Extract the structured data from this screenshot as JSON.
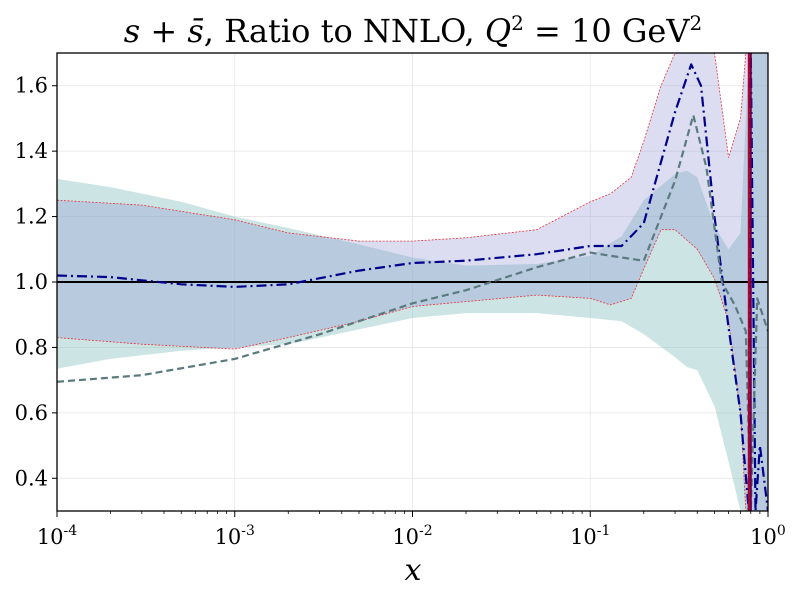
{
  "chart_data": {
    "type": "line",
    "title": {
      "lead": "s + s̄",
      "middle": ", Ratio to NNLO, ",
      "q": "Q",
      "q_exp": "2",
      "equals": " = 10 GeV",
      "unit_exp": "2"
    },
    "xlabel": "x",
    "ylabel": "",
    "xscale": "log",
    "xlim": [
      0.0001,
      1.0
    ],
    "ylim": [
      0.3,
      1.7
    ],
    "grid": true,
    "x_ticks": [
      {
        "value": 0.0001,
        "base": "10",
        "exp": "-4"
      },
      {
        "value": 0.001,
        "base": "10",
        "exp": "-3"
      },
      {
        "value": 0.01,
        "base": "10",
        "exp": "-2"
      },
      {
        "value": 0.1,
        "base": "10",
        "exp": "-1"
      },
      {
        "value": 1.0,
        "base": "10",
        "exp": "0"
      }
    ],
    "y_ticks": [
      {
        "value": 0.4,
        "label": "0.4"
      },
      {
        "value": 0.6,
        "label": "0.6"
      },
      {
        "value": 0.8,
        "label": "0.8"
      },
      {
        "value": 1.0,
        "label": "1.0"
      },
      {
        "value": 1.2,
        "label": "1.2"
      },
      {
        "value": 1.4,
        "label": "1.4"
      },
      {
        "value": 1.6,
        "label": "1.6"
      }
    ],
    "reference_line": {
      "y": 1.0,
      "color": "#000000"
    },
    "bands": [
      {
        "color": "#7fbfbb",
        "opacity": 0.4,
        "points": [
          [
            0.0001,
            0.735,
            1.315
          ],
          [
            0.0002,
            0.765,
            1.29
          ],
          [
            0.0005,
            0.79,
            1.245
          ],
          [
            0.001,
            0.8,
            1.2
          ],
          [
            0.002,
            0.81,
            1.165
          ],
          [
            0.005,
            0.855,
            1.115
          ],
          [
            0.01,
            0.89,
            1.075
          ],
          [
            0.02,
            0.905,
            1.05
          ],
          [
            0.05,
            0.905,
            1.055
          ],
          [
            0.1,
            0.89,
            1.08
          ],
          [
            0.15,
            0.88,
            1.14
          ],
          [
            0.2,
            0.84,
            1.25
          ],
          [
            0.3,
            0.77,
            1.33
          ],
          [
            0.35,
            0.74,
            1.34
          ],
          [
            0.4,
            0.73,
            1.32
          ],
          [
            0.5,
            0.62,
            1.17
          ],
          [
            0.6,
            0.45,
            1.1
          ],
          [
            0.7,
            0.3,
            1.15
          ],
          [
            0.78,
            0.3,
            1.7
          ],
          [
            0.85,
            0.3,
            1.7
          ],
          [
            0.92,
            0.3,
            1.7
          ],
          [
            1.0,
            0.3,
            1.7
          ]
        ]
      },
      {
        "color": "#8a8fcf",
        "opacity": 0.3,
        "edge_color": "#e8303a",
        "points": [
          [
            0.0001,
            0.83,
            1.25
          ],
          [
            0.0003,
            0.81,
            1.235
          ],
          [
            0.001,
            0.795,
            1.19
          ],
          [
            0.002,
            0.83,
            1.15
          ],
          [
            0.005,
            0.88,
            1.125
          ],
          [
            0.01,
            0.925,
            1.125
          ],
          [
            0.02,
            0.94,
            1.135
          ],
          [
            0.05,
            0.96,
            1.16
          ],
          [
            0.1,
            0.95,
            1.245
          ],
          [
            0.13,
            0.93,
            1.27
          ],
          [
            0.17,
            0.95,
            1.32
          ],
          [
            0.2,
            1.04,
            1.43
          ],
          [
            0.25,
            1.16,
            1.6
          ],
          [
            0.3,
            1.16,
            1.7
          ],
          [
            0.4,
            1.1,
            1.7
          ],
          [
            0.5,
            1.01,
            1.7
          ],
          [
            0.6,
            0.88,
            1.38
          ],
          [
            0.7,
            0.6,
            1.5
          ],
          [
            0.75,
            0.3,
            1.7
          ],
          [
            0.8,
            0.3,
            1.7
          ],
          [
            0.9,
            0.3,
            1.7
          ],
          [
            1.0,
            0.3,
            1.7
          ]
        ]
      }
    ],
    "series": [
      {
        "color": "#00008b",
        "style": "dashdot",
        "points": [
          [
            0.0001,
            1.02
          ],
          [
            0.0002,
            1.015
          ],
          [
            0.0005,
            0.993
          ],
          [
            0.001,
            0.985
          ],
          [
            0.002,
            0.993
          ],
          [
            0.005,
            1.035
          ],
          [
            0.01,
            1.058
          ],
          [
            0.02,
            1.065
          ],
          [
            0.05,
            1.085
          ],
          [
            0.1,
            1.11
          ],
          [
            0.15,
            1.11
          ],
          [
            0.2,
            1.18
          ],
          [
            0.3,
            1.52
          ],
          [
            0.37,
            1.665
          ],
          [
            0.42,
            1.6
          ],
          [
            0.5,
            1.2
          ],
          [
            0.6,
            0.86
          ],
          [
            0.7,
            0.6
          ],
          [
            0.78,
            0.3
          ],
          [
            0.8,
            1.7
          ],
          [
            0.85,
            0.3
          ],
          [
            0.9,
            0.5
          ],
          [
            1.0,
            0.3
          ]
        ]
      },
      {
        "color": "#5a7a80",
        "style": "dashed",
        "points": [
          [
            0.0001,
            0.695
          ],
          [
            0.0003,
            0.715
          ],
          [
            0.001,
            0.765
          ],
          [
            0.003,
            0.84
          ],
          [
            0.01,
            0.935
          ],
          [
            0.02,
            0.975
          ],
          [
            0.05,
            1.045
          ],
          [
            0.1,
            1.09
          ],
          [
            0.15,
            1.075
          ],
          [
            0.2,
            1.065
          ],
          [
            0.3,
            1.31
          ],
          [
            0.38,
            1.51
          ],
          [
            0.45,
            1.35
          ],
          [
            0.55,
            1.0
          ],
          [
            0.65,
            0.93
          ],
          [
            0.75,
            0.85
          ],
          [
            0.8,
            0.3
          ],
          [
            0.87,
            0.95
          ],
          [
            1.0,
            0.85
          ]
        ]
      }
    ],
    "spikes": [
      {
        "x": 0.78,
        "color": "#b0002a"
      },
      {
        "x": 0.8,
        "color": "#6a0050"
      }
    ]
  }
}
